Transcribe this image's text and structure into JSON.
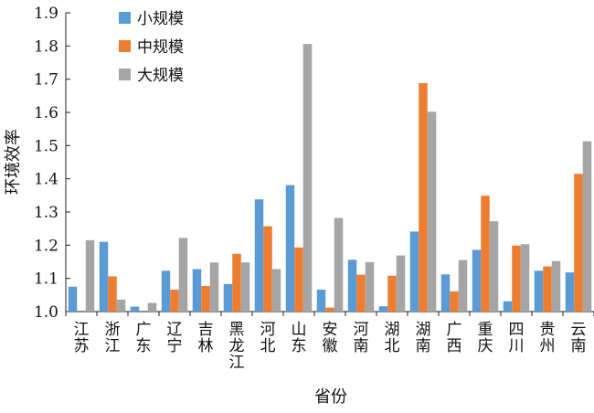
{
  "chart_data": {
    "type": "bar",
    "title": "",
    "xlabel": "省份",
    "ylabel": "环境效率",
    "ylim": [
      1.0,
      1.9
    ],
    "yticks": [
      "1.0",
      "1.1",
      "1.2",
      "1.3",
      "1.4",
      "1.5",
      "1.6",
      "1.7",
      "1.8",
      "1.9"
    ],
    "grid": false,
    "legend_position": "top-left",
    "categories": [
      "江苏",
      "浙江",
      "广东",
      "辽宁",
      "吉林",
      "黑龙江",
      "河北",
      "山东",
      "安徽",
      "河南",
      "湖北",
      "湖南",
      "广西",
      "重庆",
      "四川",
      "贵州",
      "云南"
    ],
    "series": [
      {
        "name": "小规模",
        "color": "#5b9bd5",
        "values": [
          1.075,
          1.21,
          1.015,
          1.123,
          1.128,
          1.083,
          1.338,
          1.381,
          1.066,
          1.156,
          1.016,
          1.241,
          1.112,
          1.186,
          1.031,
          1.123,
          1.118
        ]
      },
      {
        "name": "中规模",
        "color": "#ed7d31",
        "values": [
          1.0,
          1.106,
          1.0,
          1.066,
          1.077,
          1.174,
          1.257,
          1.193,
          1.012,
          1.111,
          1.108,
          1.688,
          1.061,
          1.349,
          1.199,
          1.136,
          1.415
        ]
      },
      {
        "name": "大规模",
        "color": "#a5a5a5",
        "values": [
          1.215,
          1.036,
          1.026,
          1.222,
          1.148,
          1.148,
          1.128,
          1.806,
          1.282,
          1.149,
          1.169,
          1.602,
          1.155,
          1.272,
          1.203,
          1.152,
          1.513
        ]
      }
    ]
  }
}
